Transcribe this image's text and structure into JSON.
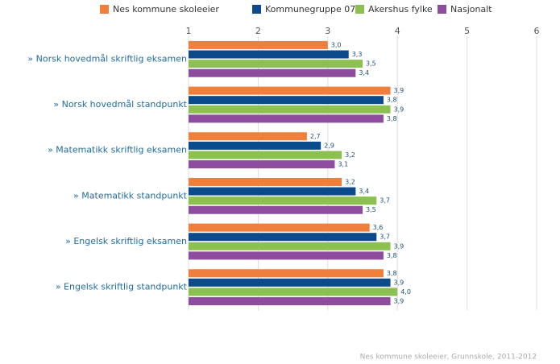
{
  "chart_data": {
    "type": "bar",
    "orientation": "horizontal",
    "categories": [
      "» Norsk hovedmål skriftlig eksamen",
      "» Norsk hovedmål standpunkt",
      "» Matematikk skriftlig eksamen",
      "» Matematikk standpunkt",
      "» Engelsk skriftlig eksamen",
      "» Engelsk skriftlig standpunkt"
    ],
    "series": [
      {
        "name": "Nes kommune skoleeier",
        "color": "#f07f3c",
        "values": [
          3.0,
          3.9,
          2.7,
          3.2,
          3.6,
          3.8
        ],
        "value_labels": [
          "3,0",
          "3,9",
          "2,7",
          "3,2",
          "3,6",
          "3,8"
        ]
      },
      {
        "name": "Kommunegruppe 07",
        "color": "#0b4a8b",
        "values": [
          3.3,
          3.8,
          2.9,
          3.4,
          3.7,
          3.9
        ],
        "value_labels": [
          "3,3",
          "3,8",
          "2,9",
          "3,4",
          "3,7",
          "3,9"
        ]
      },
      {
        "name": "Akershus fylke",
        "color": "#8cc152",
        "values": [
          3.5,
          3.9,
          3.2,
          3.7,
          3.9,
          4.0
        ],
        "value_labels": [
          "3,5",
          "3,9",
          "3,2",
          "3,7",
          "3,9",
          "4,0"
        ]
      },
      {
        "name": "Nasjonalt",
        "color": "#8e4c9e",
        "values": [
          3.4,
          3.8,
          3.1,
          3.5,
          3.8,
          3.9
        ],
        "value_labels": [
          "3,4",
          "3,8",
          "3,1",
          "3,5",
          "3,8",
          "3,9"
        ]
      }
    ],
    "xlim": [
      1,
      6
    ],
    "xticks": [
      1,
      2,
      3,
      4,
      5,
      6
    ],
    "grid": true,
    "source": "Nes kommune skoleeier, Grunnskole, 2011-2012"
  }
}
